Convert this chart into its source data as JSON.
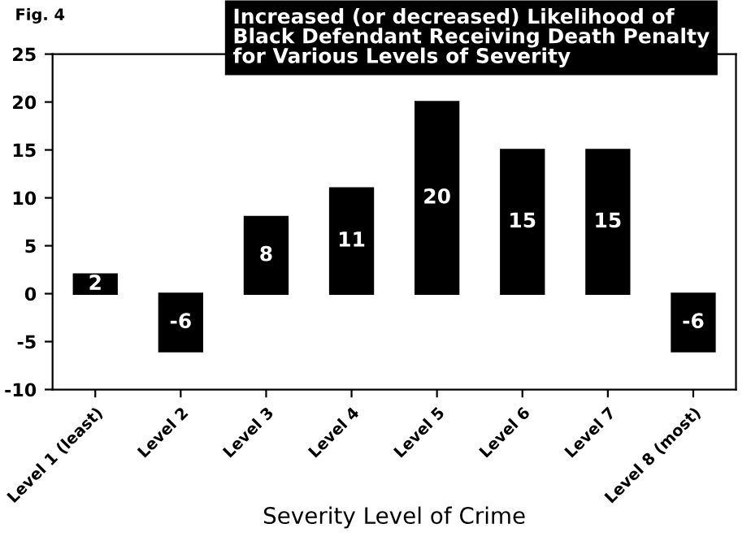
{
  "chart_data": {
    "type": "bar",
    "title": "Increased (or decreased) Likelihood of\nBlack Defendant Receiving Death Penalty\nfor Various Levels of Severity",
    "xlabel": "Severity Level of Crime",
    "annotations": [
      "Fig. 4"
    ],
    "categories": [
      "Level 1 (least)",
      "Level 2",
      "Level 3",
      "Level 4",
      "Level 5",
      "Level 6",
      "Level 7",
      "Level 8 (most)"
    ],
    "values": [
      2,
      -6,
      8,
      11,
      20,
      15,
      15,
      -6
    ],
    "color": "#000000",
    "ylim": [
      -10,
      25
    ],
    "yticks": [
      -10,
      -5,
      0,
      5,
      10,
      15,
      20,
      25
    ],
    "data_labels": true,
    "grid": false
  }
}
